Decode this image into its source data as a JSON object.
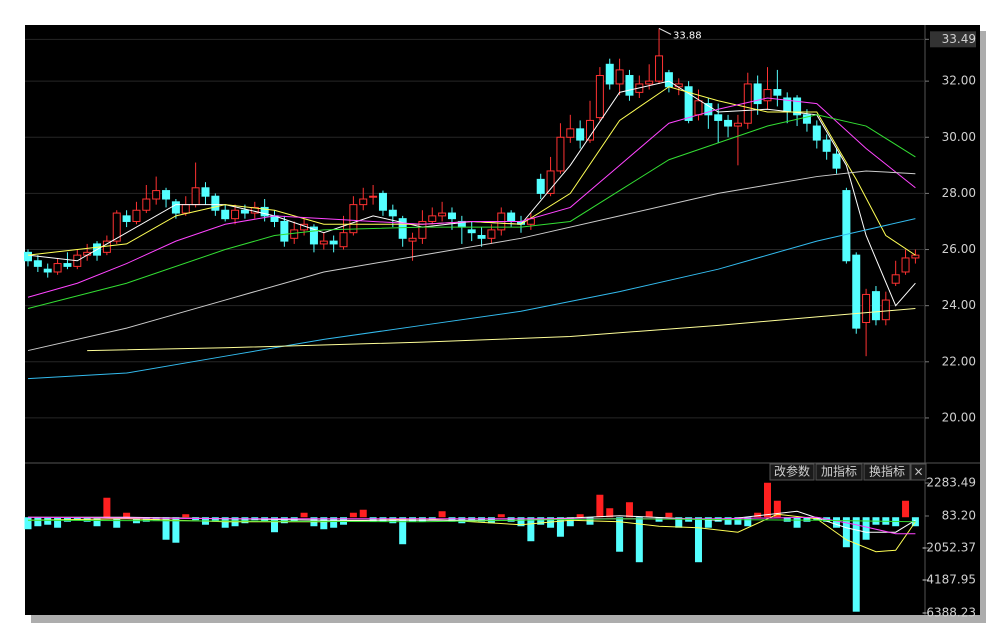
{
  "chart_data": [
    {
      "type": "candlestick",
      "candles": {
        "open": [
          25.9,
          25.6,
          25.3,
          25.2,
          25.5,
          25.4,
          25.8,
          26.2,
          25.9,
          26.3,
          27.2,
          27.0,
          27.4,
          27.8,
          28.1,
          27.7,
          27.3,
          27.6,
          28.2,
          27.9,
          27.4,
          27.1,
          27.4,
          27.3,
          27.5,
          27.2,
          27.0,
          26.4,
          26.7,
          26.8,
          26.2,
          26.3,
          26.1,
          26.6,
          27.6,
          27.9,
          28.0,
          27.4,
          27.1,
          26.3,
          26.4,
          27.0,
          27.2,
          27.3,
          27.0,
          26.7,
          26.5,
          26.4,
          26.7,
          27.3,
          27.0,
          26.9,
          28.5,
          28.0,
          28.8,
          30.0,
          30.3,
          29.9,
          30.7,
          32.6,
          31.9,
          32.2,
          31.6,
          31.9,
          32.0,
          32.3,
          31.8,
          31.8,
          30.8,
          31.2,
          30.8,
          30.6,
          30.4,
          30.5,
          31.9,
          31.3,
          31.7,
          31.4,
          31.4,
          30.8,
          30.4,
          29.9,
          29.4,
          28.1,
          25.8,
          23.4,
          24.5,
          23.5,
          24.8,
          25.2,
          25.7
        ],
        "high": [
          26.0,
          25.8,
          25.5,
          25.7,
          25.9,
          26.0,
          26.2,
          26.3,
          26.5,
          27.4,
          27.4,
          27.7,
          28.3,
          28.6,
          28.2,
          27.8,
          27.9,
          29.1,
          28.4,
          28.0,
          27.6,
          27.6,
          27.6,
          27.7,
          27.8,
          27.4,
          27.2,
          27.0,
          27.1,
          26.9,
          26.6,
          26.5,
          27.2,
          27.9,
          28.2,
          28.3,
          28.1,
          27.6,
          27.2,
          26.6,
          27.4,
          27.5,
          27.7,
          27.5,
          27.2,
          27.0,
          26.8,
          26.9,
          27.5,
          27.4,
          27.2,
          27.3,
          28.7,
          29.3,
          30.5,
          30.8,
          30.6,
          31.3,
          32.5,
          32.8,
          32.8,
          32.4,
          32.2,
          32.6,
          33.88,
          32.4,
          32.1,
          32.0,
          31.7,
          31.4,
          31.2,
          30.8,
          30.8,
          32.3,
          32.2,
          32.5,
          32.4,
          31.6,
          31.5,
          31.0,
          30.6,
          30.1,
          29.6,
          28.2,
          25.9,
          24.6,
          24.7,
          24.5,
          25.6,
          26.0,
          26.0
        ],
        "low": [
          25.4,
          25.2,
          25.0,
          25.1,
          25.3,
          25.3,
          25.6,
          25.6,
          25.8,
          26.2,
          26.8,
          26.9,
          27.3,
          27.6,
          27.5,
          27.1,
          27.2,
          27.5,
          27.6,
          27.2,
          27.0,
          26.9,
          27.1,
          27.1,
          27.0,
          26.8,
          26.1,
          26.2,
          26.5,
          25.9,
          26.0,
          25.9,
          26.0,
          26.5,
          27.4,
          27.6,
          27.2,
          26.8,
          26.1,
          25.6,
          26.2,
          26.9,
          27.0,
          26.7,
          26.2,
          26.3,
          26.1,
          26.2,
          26.5,
          26.8,
          26.6,
          26.7,
          27.8,
          27.9,
          28.7,
          29.8,
          29.6,
          29.8,
          30.6,
          31.7,
          31.5,
          31.3,
          31.4,
          31.7,
          31.9,
          31.6,
          31.5,
          30.5,
          30.6,
          30.3,
          29.8,
          30.0,
          29.0,
          30.3,
          30.8,
          31.0,
          31.1,
          30.5,
          30.4,
          30.2,
          29.6,
          29.2,
          28.7,
          25.5,
          23.0,
          22.2,
          23.3,
          23.3,
          24.7,
          25.1,
          25.5
        ],
        "close": [
          25.6,
          25.4,
          25.2,
          25.5,
          25.4,
          25.8,
          25.9,
          25.8,
          26.3,
          27.3,
          27.0,
          27.4,
          27.8,
          28.1,
          27.8,
          27.3,
          27.6,
          28.2,
          27.9,
          27.4,
          27.1,
          27.4,
          27.3,
          27.5,
          27.2,
          27.0,
          26.3,
          26.7,
          26.9,
          26.2,
          26.3,
          26.2,
          26.6,
          27.6,
          27.8,
          27.9,
          27.4,
          27.2,
          26.4,
          26.4,
          27.0,
          27.2,
          27.3,
          27.1,
          26.8,
          26.6,
          26.4,
          26.7,
          27.3,
          27.0,
          26.9,
          27.1,
          28.0,
          28.8,
          30.0,
          30.3,
          29.9,
          30.6,
          32.2,
          31.9,
          32.4,
          31.5,
          31.9,
          32.0,
          32.9,
          31.8,
          31.9,
          30.6,
          31.3,
          30.8,
          30.6,
          30.4,
          30.5,
          31.9,
          31.2,
          31.7,
          31.5,
          30.9,
          30.8,
          30.5,
          29.9,
          29.5,
          28.9,
          25.6,
          23.2,
          24.4,
          23.5,
          24.2,
          25.1,
          25.7,
          25.8
        ]
      },
      "up_color": "#ff3232",
      "down_color": "#54ffff",
      "lines": [
        {
          "color": "#ffffff",
          "x": [
            0,
            5,
            10,
            15,
            20,
            25,
            30,
            35,
            40,
            45,
            50,
            55,
            60,
            65,
            70,
            75,
            80,
            83,
            85,
            88,
            90
          ],
          "values": [
            25.8,
            25.6,
            26.6,
            27.6,
            27.6,
            27.2,
            26.6,
            27.2,
            26.8,
            27.0,
            26.9,
            29.0,
            31.6,
            32.0,
            30.9,
            31.0,
            30.8,
            29.0,
            26.5,
            24.0,
            24.8
          ]
        },
        {
          "color": "#ffff55",
          "x": [
            0,
            10,
            15,
            20,
            25,
            30,
            35,
            40,
            45,
            50,
            55,
            60,
            65,
            70,
            75,
            80,
            84,
            87,
            90
          ],
          "values": [
            25.8,
            26.2,
            27.2,
            27.6,
            27.4,
            26.9,
            26.9,
            26.9,
            27.0,
            26.9,
            28.0,
            30.6,
            31.8,
            31.3,
            30.9,
            30.9,
            28.5,
            26.5,
            25.8
          ]
        },
        {
          "color": "#ff44ff",
          "x": [
            0,
            5,
            10,
            15,
            20,
            25,
            30,
            35,
            40,
            45,
            50,
            55,
            60,
            65,
            70,
            75,
            80,
            85,
            90
          ],
          "values": [
            24.3,
            24.8,
            25.5,
            26.3,
            26.9,
            27.2,
            27.1,
            27.0,
            26.9,
            27.0,
            27.0,
            27.5,
            29.0,
            30.5,
            31.0,
            31.4,
            31.2,
            29.6,
            28.2
          ]
        },
        {
          "color": "#33dd33",
          "x": [
            0,
            10,
            20,
            25,
            30,
            40,
            50,
            55,
            60,
            65,
            70,
            75,
            80,
            85,
            90
          ],
          "values": [
            23.9,
            24.8,
            26.0,
            26.5,
            26.7,
            26.8,
            26.8,
            27.0,
            28.1,
            29.2,
            29.8,
            30.4,
            30.8,
            30.4,
            29.3
          ]
        },
        {
          "color": "#cccccc",
          "x": [
            0,
            10,
            20,
            30,
            40,
            50,
            60,
            70,
            80,
            85,
            90
          ],
          "values": [
            22.4,
            23.2,
            24.2,
            25.2,
            25.8,
            26.4,
            27.2,
            28.0,
            28.6,
            28.8,
            28.7
          ]
        },
        {
          "color": "#33bbee",
          "x": [
            0,
            10,
            20,
            30,
            40,
            50,
            60,
            70,
            80,
            85,
            90
          ],
          "values": [
            21.4,
            21.6,
            22.2,
            22.8,
            23.3,
            23.8,
            24.5,
            25.3,
            26.3,
            26.7,
            27.1
          ]
        },
        {
          "color": "#ffff99",
          "x": [
            6,
            20,
            40,
            55,
            70,
            80,
            90
          ],
          "values": [
            22.4,
            22.5,
            22.7,
            22.9,
            23.3,
            23.6,
            23.9
          ]
        }
      ],
      "annotations": [
        {
          "label": "33.88",
          "value": 33.88
        }
      ],
      "ylim": [
        18.43,
        34.0
      ],
      "yticks": [
        {
          "value": 20,
          "label": "20.00"
        },
        {
          "value": 22,
          "label": "22.00"
        },
        {
          "value": 24,
          "label": "24.00"
        },
        {
          "value": 26,
          "label": "26.00"
        },
        {
          "value": 28,
          "label": "28.00"
        },
        {
          "value": 30,
          "label": "30.00"
        },
        {
          "value": 32,
          "label": "32.00"
        },
        33.49
      ],
      "grid": true
    },
    {
      "type": "bar",
      "values": [
        -800,
        -600,
        -500,
        -700,
        -300,
        -200,
        -300,
        -600,
        1300,
        -700,
        300,
        -400,
        -300,
        -200,
        -1500,
        -1700,
        200,
        -200,
        -500,
        -300,
        -700,
        -600,
        -400,
        -200,
        -300,
        -1000,
        -400,
        -300,
        300,
        -600,
        -800,
        -700,
        -500,
        300,
        500,
        -300,
        -300,
        -400,
        -1800,
        -300,
        -300,
        -200,
        400,
        -300,
        -400,
        -300,
        -300,
        -400,
        200,
        -300,
        -600,
        -1600,
        -500,
        -700,
        -1300,
        -600,
        200,
        -500,
        1500,
        600,
        -2300,
        1000,
        -3000,
        400,
        -300,
        300,
        -700,
        -300,
        -3000,
        -700,
        -300,
        -500,
        -500,
        -600,
        300,
        2300,
        1100,
        -300,
        -700,
        -300,
        -200,
        -300,
        -700,
        -2000,
        -6300,
        -1500,
        -500,
        -500,
        -600,
        1100,
        -600
      ],
      "up_color": "#ff2020",
      "down_color": "#54ffff",
      "lines": [
        {
          "color": "#ffff55",
          "x": [
            0,
            10,
            20,
            30,
            40,
            50,
            55,
            60,
            64,
            68,
            72,
            76,
            80,
            83,
            86,
            88,
            90
          ],
          "values": [
            -200,
            -100,
            -300,
            -300,
            -100,
            -500,
            -200,
            -300,
            -600,
            -700,
            -1000,
            200,
            -100,
            -1500,
            -2300,
            -2200,
            -300
          ]
        },
        {
          "color": "#ffffff",
          "x": [
            0,
            10,
            30,
            50,
            60,
            70,
            78,
            83,
            85,
            88,
            90
          ],
          "values": [
            0,
            0,
            -200,
            -200,
            100,
            -200,
            400,
            -700,
            -1000,
            -1000,
            -200
          ]
        },
        {
          "color": "#ff44ff",
          "x": [
            0,
            20,
            50,
            70,
            80,
            84,
            88,
            90
          ],
          "values": [
            0,
            -100,
            -100,
            -100,
            0,
            -500,
            -1100,
            -1100
          ]
        },
        {
          "color": "#33dd33",
          "x": [
            0,
            40,
            60,
            80,
            90
          ],
          "values": [
            -200,
            -300,
            -100,
            -200,
            -300
          ]
        }
      ],
      "buttons": [
        "改参数",
        "加指标",
        "换指标",
        "×"
      ],
      "ylim": [
        -6520,
        3150
      ],
      "yticks": [
        2283.49,
        {
          "value": 83.2,
          "label": "83.20"
        },
        -2052.37,
        -4187.95,
        -6388.23
      ]
    }
  ]
}
